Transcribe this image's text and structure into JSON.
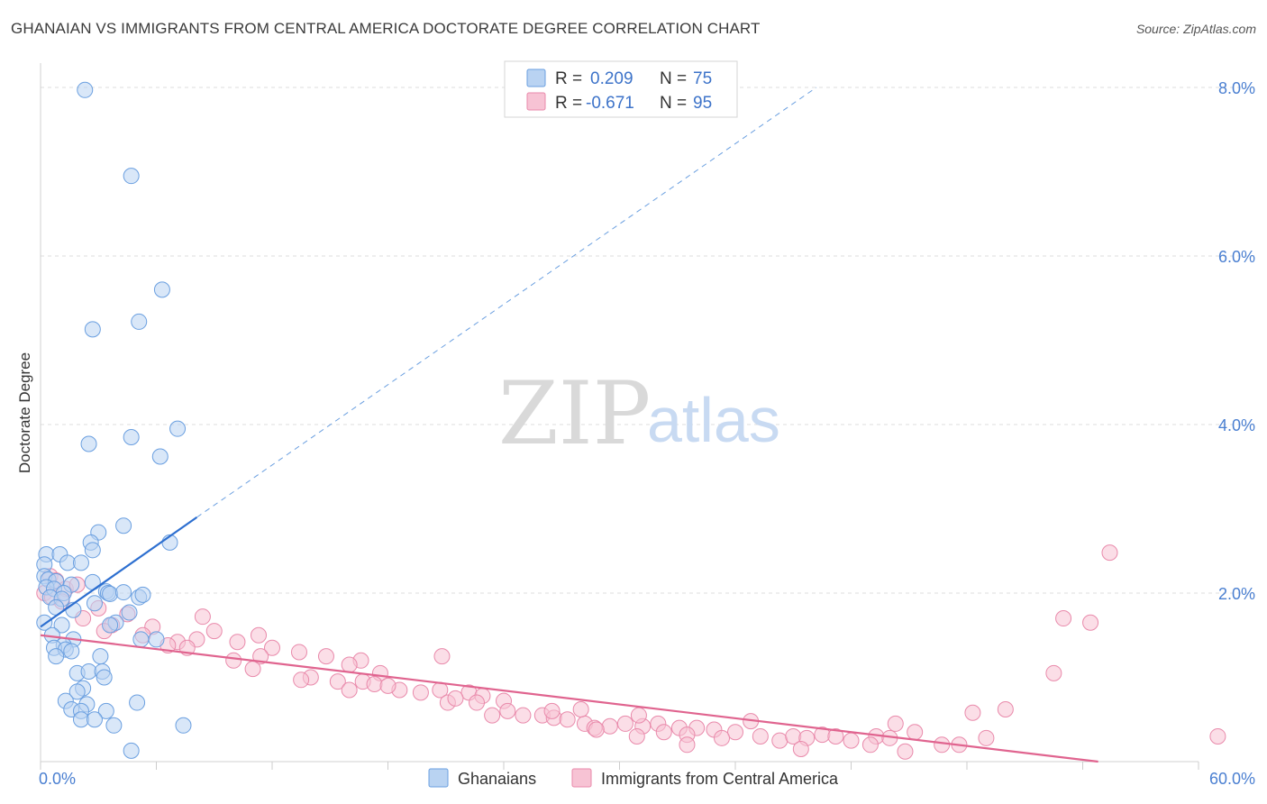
{
  "title": "GHANAIAN VS IMMIGRANTS FROM CENTRAL AMERICA DOCTORATE DEGREE CORRELATION CHART",
  "source": "Source: ZipAtlas.com",
  "watermark": {
    "zip": "ZIP",
    "atlas": "atlas"
  },
  "colors": {
    "blue_fill": "#b9d3f2",
    "blue_stroke": "#6a9fe0",
    "blue_line": "#2d6fd0",
    "pink_fill": "#f7c3d4",
    "pink_stroke": "#e98aab",
    "pink_line": "#e0648f",
    "grid": "#dcdcdc",
    "tick_text": "#4a7fd1"
  },
  "chart_data": {
    "type": "scatter",
    "title": "GHANAIAN VS IMMIGRANTS FROM CENTRAL AMERICA DOCTORATE DEGREE CORRELATION CHART",
    "xlabel": "",
    "ylabel": "Doctorate Degree",
    "xlim": [
      0,
      60
    ],
    "ylim": [
      0,
      8.5
    ],
    "x_tick_labels": [
      "0.0%",
      "60.0%"
    ],
    "y_ticks": [
      2,
      4,
      6,
      8
    ],
    "y_tick_labels": [
      "2.0%",
      "4.0%",
      "6.0%",
      "8.0%"
    ],
    "legend": [
      {
        "name": "Ghanaians",
        "r_label": "R =",
        "r": "0.209",
        "n_label": "N =",
        "n": "75"
      },
      {
        "name": "Immigrants from Central America",
        "r_label": "R =",
        "r": "-0.671",
        "n_label": "N =",
        "n": "95"
      }
    ],
    "series": [
      {
        "name": "Ghanaians",
        "trend": {
          "x0": 0,
          "y0": 1.6,
          "x1": 8.1,
          "y1": 2.9,
          "dash_x1": 40.2,
          "dash_y1": 8.0
        },
        "points": [
          [
            2.3,
            7.97
          ],
          [
            4.7,
            6.95
          ],
          [
            6.3,
            5.6
          ],
          [
            2.7,
            5.13
          ],
          [
            5.1,
            5.22
          ],
          [
            7.1,
            3.95
          ],
          [
            4.7,
            3.85
          ],
          [
            6.2,
            3.62
          ],
          [
            2.5,
            3.77
          ],
          [
            3.0,
            2.72
          ],
          [
            4.3,
            2.8
          ],
          [
            2.6,
            2.6
          ],
          [
            6.7,
            2.6
          ],
          [
            2.7,
            2.51
          ],
          [
            0.3,
            2.46
          ],
          [
            1.0,
            2.46
          ],
          [
            1.4,
            2.36
          ],
          [
            0.2,
            2.34
          ],
          [
            2.1,
            2.36
          ],
          [
            0.2,
            2.2
          ],
          [
            0.4,
            2.16
          ],
          [
            0.8,
            2.14
          ],
          [
            1.6,
            2.1
          ],
          [
            2.7,
            2.13
          ],
          [
            0.3,
            2.07
          ],
          [
            0.7,
            2.05
          ],
          [
            1.2,
            2.0
          ],
          [
            0.5,
            1.95
          ],
          [
            1.1,
            1.93
          ],
          [
            3.4,
            2.02
          ],
          [
            3.5,
            2.0
          ],
          [
            3.6,
            1.99
          ],
          [
            4.3,
            2.01
          ],
          [
            5.1,
            1.95
          ],
          [
            5.3,
            1.98
          ],
          [
            0.8,
            1.83
          ],
          [
            1.7,
            1.8
          ],
          [
            2.8,
            1.88
          ],
          [
            4.6,
            1.77
          ],
          [
            0.2,
            1.65
          ],
          [
            1.1,
            1.62
          ],
          [
            3.9,
            1.65
          ],
          [
            3.6,
            1.62
          ],
          [
            0.6,
            1.5
          ],
          [
            1.7,
            1.45
          ],
          [
            5.2,
            1.45
          ],
          [
            6.0,
            1.45
          ],
          [
            1.2,
            1.38
          ],
          [
            0.7,
            1.35
          ],
          [
            1.3,
            1.33
          ],
          [
            1.6,
            1.31
          ],
          [
            0.8,
            1.25
          ],
          [
            3.1,
            1.25
          ],
          [
            1.9,
            1.05
          ],
          [
            2.5,
            1.07
          ],
          [
            3.2,
            1.07
          ],
          [
            3.3,
            1.0
          ],
          [
            2.2,
            0.87
          ],
          [
            1.9,
            0.83
          ],
          [
            1.3,
            0.72
          ],
          [
            2.4,
            0.68
          ],
          [
            5.0,
            0.7
          ],
          [
            1.6,
            0.62
          ],
          [
            2.1,
            0.6
          ],
          [
            3.4,
            0.6
          ],
          [
            2.1,
            0.5
          ],
          [
            2.8,
            0.5
          ],
          [
            3.8,
            0.43
          ],
          [
            7.4,
            0.43
          ],
          [
            4.7,
            0.13
          ]
        ]
      },
      {
        "name": "Immigrants from Central America",
        "trend": {
          "x0": 0,
          "y0": 1.5,
          "x1": 54.8,
          "y1": 0.0
        },
        "points": [
          [
            0.2,
            2.0
          ],
          [
            0.5,
            2.2
          ],
          [
            0.8,
            2.15
          ],
          [
            1.3,
            2.05
          ],
          [
            1.9,
            2.1
          ],
          [
            0.6,
            1.95
          ],
          [
            1.1,
            1.9
          ],
          [
            3.0,
            1.82
          ],
          [
            4.5,
            1.75
          ],
          [
            2.2,
            1.7
          ],
          [
            3.7,
            1.62
          ],
          [
            5.8,
            1.6
          ],
          [
            3.3,
            1.55
          ],
          [
            5.3,
            1.5
          ],
          [
            8.4,
            1.72
          ],
          [
            9.0,
            1.55
          ],
          [
            11.3,
            1.5
          ],
          [
            8.1,
            1.45
          ],
          [
            7.1,
            1.42
          ],
          [
            10.2,
            1.42
          ],
          [
            6.6,
            1.38
          ],
          [
            7.6,
            1.35
          ],
          [
            12.0,
            1.35
          ],
          [
            13.4,
            1.3
          ],
          [
            11.4,
            1.25
          ],
          [
            10.0,
            1.2
          ],
          [
            14.8,
            1.25
          ],
          [
            16.6,
            1.2
          ],
          [
            20.8,
            1.25
          ],
          [
            16.0,
            1.15
          ],
          [
            11.0,
            1.1
          ],
          [
            17.6,
            1.05
          ],
          [
            14.0,
            1.0
          ],
          [
            13.5,
            0.97
          ],
          [
            15.4,
            0.95
          ],
          [
            16.7,
            0.95
          ],
          [
            17.3,
            0.92
          ],
          [
            18.6,
            0.85
          ],
          [
            19.7,
            0.82
          ],
          [
            20.7,
            0.85
          ],
          [
            22.2,
            0.82
          ],
          [
            22.9,
            0.78
          ],
          [
            21.1,
            0.7
          ],
          [
            21.5,
            0.75
          ],
          [
            22.6,
            0.7
          ],
          [
            24.0,
            0.72
          ],
          [
            18.0,
            0.9
          ],
          [
            16.0,
            0.85
          ],
          [
            24.2,
            0.6
          ],
          [
            25.0,
            0.55
          ],
          [
            23.4,
            0.55
          ],
          [
            26.0,
            0.55
          ],
          [
            26.6,
            0.52
          ],
          [
            27.3,
            0.5
          ],
          [
            28.2,
            0.45
          ],
          [
            28.7,
            0.4
          ],
          [
            29.5,
            0.42
          ],
          [
            30.3,
            0.45
          ],
          [
            31.2,
            0.42
          ],
          [
            32.0,
            0.45
          ],
          [
            33.1,
            0.4
          ],
          [
            34.0,
            0.4
          ],
          [
            34.9,
            0.38
          ],
          [
            36.0,
            0.35
          ],
          [
            36.8,
            0.48
          ],
          [
            26.5,
            0.6
          ],
          [
            28.0,
            0.62
          ],
          [
            31.0,
            0.55
          ],
          [
            32.3,
            0.35
          ],
          [
            33.5,
            0.32
          ],
          [
            35.3,
            0.28
          ],
          [
            37.3,
            0.3
          ],
          [
            38.3,
            0.25
          ],
          [
            39.0,
            0.3
          ],
          [
            39.7,
            0.28
          ],
          [
            40.5,
            0.32
          ],
          [
            41.2,
            0.3
          ],
          [
            42.0,
            0.25
          ],
          [
            43.3,
            0.3
          ],
          [
            44.0,
            0.28
          ],
          [
            44.3,
            0.45
          ],
          [
            45.3,
            0.35
          ],
          [
            46.7,
            0.2
          ],
          [
            47.6,
            0.2
          ],
          [
            49.0,
            0.28
          ],
          [
            48.3,
            0.58
          ],
          [
            50.0,
            0.62
          ],
          [
            39.4,
            0.15
          ],
          [
            44.8,
            0.12
          ],
          [
            43.0,
            0.2
          ],
          [
            28.8,
            0.38
          ],
          [
            33.5,
            0.2
          ],
          [
            30.9,
            0.3
          ],
          [
            53.0,
            1.7
          ],
          [
            54.4,
            1.65
          ],
          [
            55.4,
            2.48
          ],
          [
            52.5,
            1.05
          ],
          [
            61.0,
            0.3
          ]
        ]
      }
    ]
  },
  "bottom_legend": [
    {
      "label": "Ghanaians"
    },
    {
      "label": "Immigrants from Central America"
    }
  ]
}
